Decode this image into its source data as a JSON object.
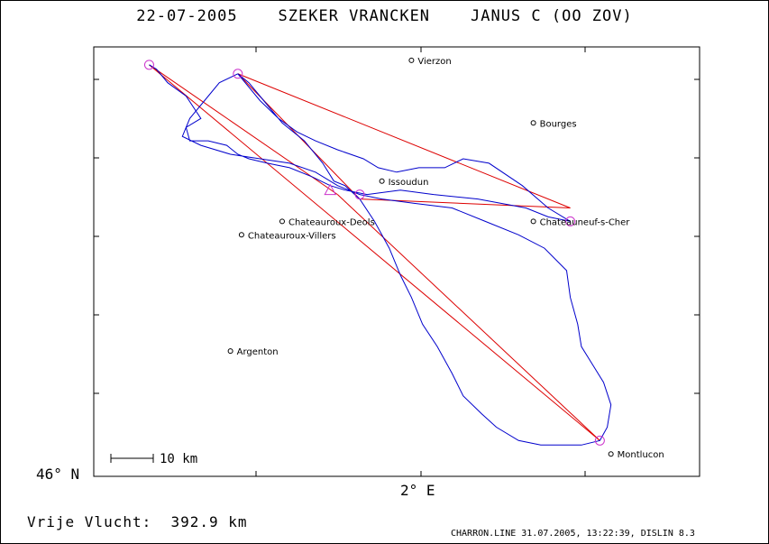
{
  "title": "22-07-2005    SZEKER VRANCKEN    JANUS C (OO ZOV)",
  "axes": {
    "y_label": "46° N",
    "x_label": "2° E"
  },
  "scale_bar": {
    "label": "10 km"
  },
  "footer": {
    "distance": "Vrije Vlucht:  392.9 km",
    "credit": "CHARRON.LINE 31.07.2005, 13:22:39, DISLIN 8.3"
  },
  "colors": {
    "track": "#0000cc",
    "task_line": "#dd0000",
    "turnpoint": "#cc33cc",
    "frame": "#000000"
  },
  "towns": [
    {
      "name": "Vierzon",
      "lon": 2.07,
      "lat": 47.22
    },
    {
      "name": "Bourges",
      "lon": 2.4,
      "lat": 47.08
    },
    {
      "name": "Chateauneuf-s-Cher",
      "lon": 2.4,
      "lat": 46.86
    },
    {
      "name": "Issoudun",
      "lon": 1.99,
      "lat": 46.95
    },
    {
      "name": "Chateauroux-Deols",
      "lon": 1.72,
      "lat": 46.86
    },
    {
      "name": "Chateauroux-Villers",
      "lon": 1.61,
      "lat": 46.83
    },
    {
      "name": "Argenton",
      "lon": 1.58,
      "lat": 46.57
    },
    {
      "name": "Montlucon",
      "lon": 2.61,
      "lat": 46.34
    }
  ],
  "task_lines": [
    [
      [
        1.36,
        47.21
      ],
      [
        1.87,
        46.92
      ]
    ],
    [
      [
        1.87,
        46.92
      ],
      [
        2.58,
        46.37
      ]
    ],
    [
      [
        2.58,
        46.37
      ],
      [
        1.36,
        47.21
      ]
    ],
    [
      [
        1.6,
        47.19
      ],
      [
        2.5,
        46.89
      ]
    ],
    [
      [
        1.6,
        47.19
      ],
      [
        1.93,
        46.91
      ]
    ],
    [
      [
        1.93,
        46.91
      ],
      [
        2.5,
        46.89
      ]
    ]
  ],
  "turnpoints": [
    {
      "lon": 1.36,
      "lat": 47.21,
      "shape": "circle"
    },
    {
      "lon": 1.6,
      "lat": 47.19,
      "shape": "circle"
    },
    {
      "lon": 1.93,
      "lat": 46.92,
      "shape": "circle"
    },
    {
      "lon": 2.5,
      "lat": 46.86,
      "shape": "circle"
    },
    {
      "lon": 2.58,
      "lat": 46.37,
      "shape": "circle"
    },
    {
      "lon": 1.85,
      "lat": 46.93,
      "shape": "triangle"
    }
  ],
  "track": [
    [
      1.36,
      47.21
    ],
    [
      1.38,
      47.2
    ],
    [
      1.41,
      47.17
    ],
    [
      1.46,
      47.14
    ],
    [
      1.5,
      47.09
    ],
    [
      1.46,
      47.07
    ],
    [
      1.47,
      47.04
    ],
    [
      1.52,
      47.04
    ],
    [
      1.57,
      47.03
    ],
    [
      1.6,
      47.01
    ],
    [
      1.63,
      47.0
    ],
    [
      1.68,
      46.99
    ],
    [
      1.74,
      46.98
    ],
    [
      1.8,
      46.96
    ],
    [
      1.85,
      46.94
    ],
    [
      1.89,
      46.93
    ],
    [
      1.95,
      46.92
    ],
    [
      2.04,
      46.93
    ],
    [
      2.13,
      46.92
    ],
    [
      2.25,
      46.91
    ],
    [
      2.38,
      46.89
    ],
    [
      2.44,
      46.87
    ],
    [
      2.5,
      46.86
    ],
    [
      2.44,
      46.89
    ],
    [
      2.37,
      46.94
    ],
    [
      2.28,
      46.99
    ],
    [
      2.21,
      47.0
    ],
    [
      2.16,
      46.98
    ],
    [
      2.09,
      46.98
    ],
    [
      2.03,
      46.97
    ],
    [
      1.98,
      46.98
    ],
    [
      1.94,
      47.0
    ],
    [
      1.87,
      47.02
    ],
    [
      1.81,
      47.04
    ],
    [
      1.76,
      47.06
    ],
    [
      1.71,
      47.09
    ],
    [
      1.66,
      47.13
    ],
    [
      1.62,
      47.17
    ],
    [
      1.6,
      47.19
    ],
    [
      1.63,
      47.17
    ],
    [
      1.67,
      47.13
    ],
    [
      1.72,
      47.08
    ],
    [
      1.78,
      47.04
    ],
    [
      1.83,
      46.99
    ],
    [
      1.86,
      46.95
    ],
    [
      1.89,
      46.94
    ],
    [
      1.93,
      46.91
    ],
    [
      1.97,
      46.86
    ],
    [
      2.01,
      46.8
    ],
    [
      2.04,
      46.74
    ],
    [
      2.07,
      46.69
    ],
    [
      2.1,
      46.63
    ],
    [
      2.14,
      46.58
    ],
    [
      2.18,
      46.52
    ],
    [
      2.21,
      46.47
    ],
    [
      2.26,
      46.43
    ],
    [
      2.3,
      46.4
    ],
    [
      2.36,
      46.37
    ],
    [
      2.42,
      46.36
    ],
    [
      2.48,
      46.36
    ],
    [
      2.53,
      46.36
    ],
    [
      2.58,
      46.37
    ],
    [
      2.6,
      46.4
    ],
    [
      2.61,
      46.45
    ],
    [
      2.59,
      46.5
    ],
    [
      2.56,
      46.54
    ],
    [
      2.53,
      46.58
    ],
    [
      2.52,
      46.63
    ],
    [
      2.5,
      46.69
    ],
    [
      2.49,
      46.75
    ],
    [
      2.43,
      46.8
    ],
    [
      2.36,
      46.83
    ],
    [
      2.27,
      46.86
    ],
    [
      2.18,
      46.89
    ],
    [
      2.08,
      46.9
    ],
    [
      1.99,
      46.91
    ],
    [
      1.93,
      46.92
    ],
    [
      1.87,
      46.94
    ],
    [
      1.81,
      46.97
    ],
    [
      1.74,
      46.99
    ],
    [
      1.66,
      47.0
    ],
    [
      1.58,
      47.01
    ],
    [
      1.5,
      47.03
    ],
    [
      1.45,
      47.05
    ],
    [
      1.47,
      47.09
    ],
    [
      1.51,
      47.13
    ],
    [
      1.55,
      47.17
    ],
    [
      1.6,
      47.19
    ]
  ],
  "map_bounds": {
    "lon_min": 1.21,
    "lon_max": 2.85,
    "lat_min": 46.29,
    "lat_max": 47.25
  }
}
